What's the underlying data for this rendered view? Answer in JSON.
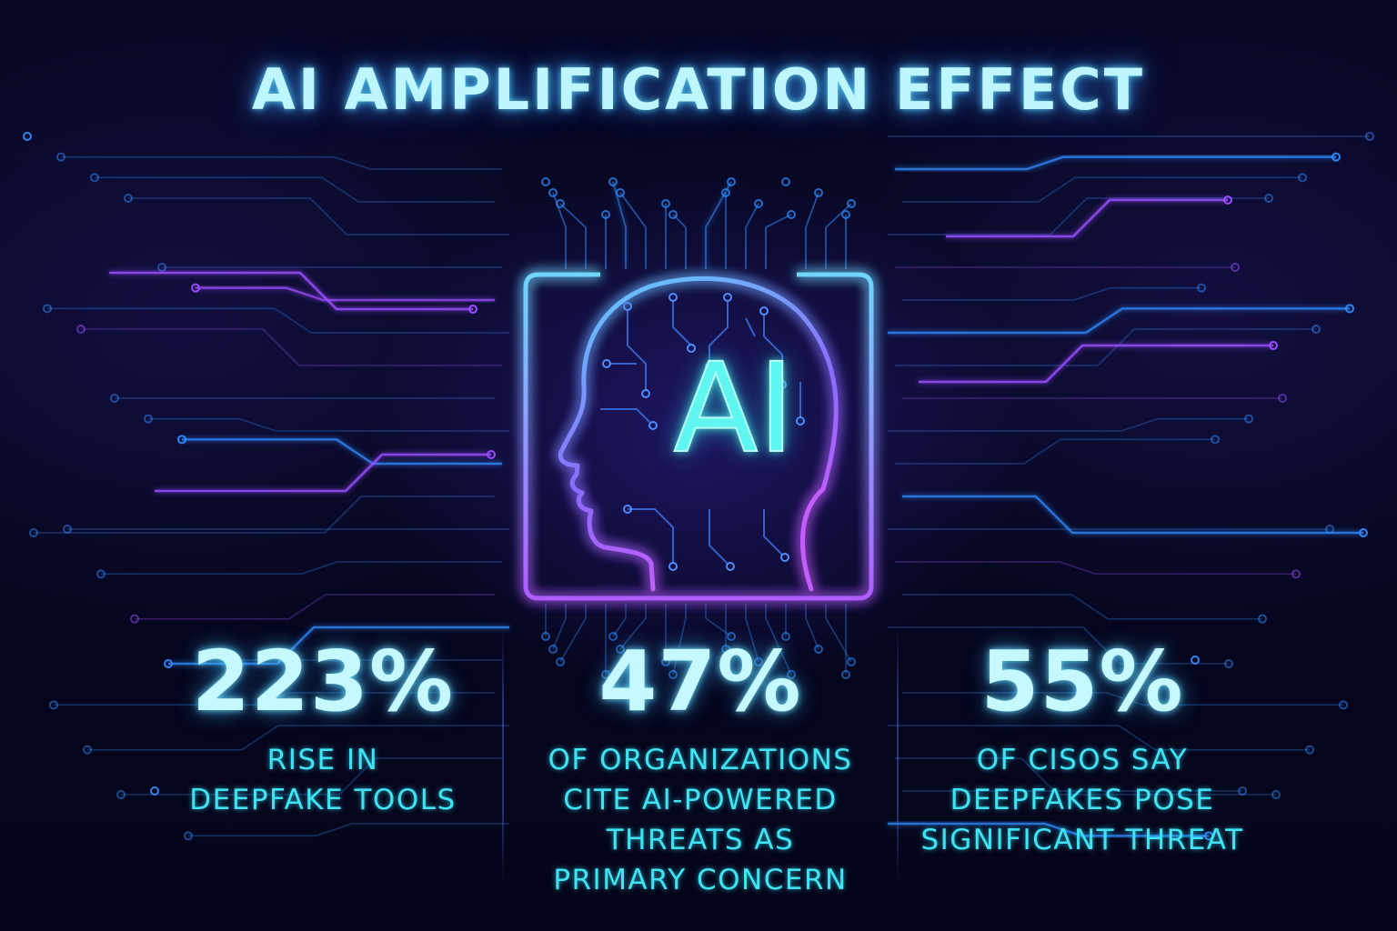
{
  "title": "AI AMPLIFICATION EFFECT",
  "chip": {
    "label": "AI"
  },
  "stats": [
    {
      "value": "223%",
      "description": [
        "RISE IN",
        "DEEPFAKE TOOLS"
      ]
    },
    {
      "value": "47%",
      "description": [
        "OF ORGANIZATIONS",
        "CITE AI-POWERED",
        "THREATS AS",
        "PRIMARY CONCERN"
      ]
    },
    {
      "value": "55%",
      "description": [
        "OF CISOS SAY",
        "DEEPFAKES POSE",
        "SIGNIFICANT THREAT"
      ]
    }
  ],
  "colors": {
    "background": "#05061a",
    "title": "#bdf6ff",
    "stat_value": "#c6f9ff",
    "stat_desc": "#3fe3f3",
    "chip_text": "#5ff5f0",
    "circuit_blue": "#2f8cff",
    "circuit_purple": "#9a4dff"
  },
  "icons": {
    "chip": "ai-chip-head-icon",
    "background": "circuit-board-pattern"
  }
}
